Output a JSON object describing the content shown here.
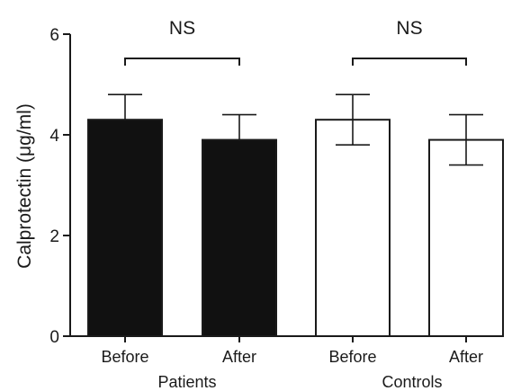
{
  "chart_data": {
    "type": "bar",
    "ylabel": "Calprotectin (μg/ml)",
    "xlabel": "",
    "title": "",
    "ylim": [
      0,
      6
    ],
    "yticks": [
      0,
      2,
      4,
      6
    ],
    "grid": false,
    "legend": "none",
    "groups": [
      {
        "label": "Patients",
        "significance": "NS",
        "bars": [
          {
            "category": "Before",
            "value": 4.3,
            "error_high": 4.8,
            "error_low": null,
            "fill": "#111111"
          },
          {
            "category": "After",
            "value": 3.9,
            "error_high": 4.4,
            "error_low": null,
            "fill": "#111111"
          }
        ]
      },
      {
        "label": "Controls",
        "significance": "NS",
        "bars": [
          {
            "category": "Before",
            "value": 4.3,
            "error_high": 4.8,
            "error_low": 3.8,
            "fill": "#ffffff"
          },
          {
            "category": "After",
            "value": 3.9,
            "error_high": 4.4,
            "error_low": 3.4,
            "fill": "#ffffff"
          }
        ]
      }
    ]
  }
}
